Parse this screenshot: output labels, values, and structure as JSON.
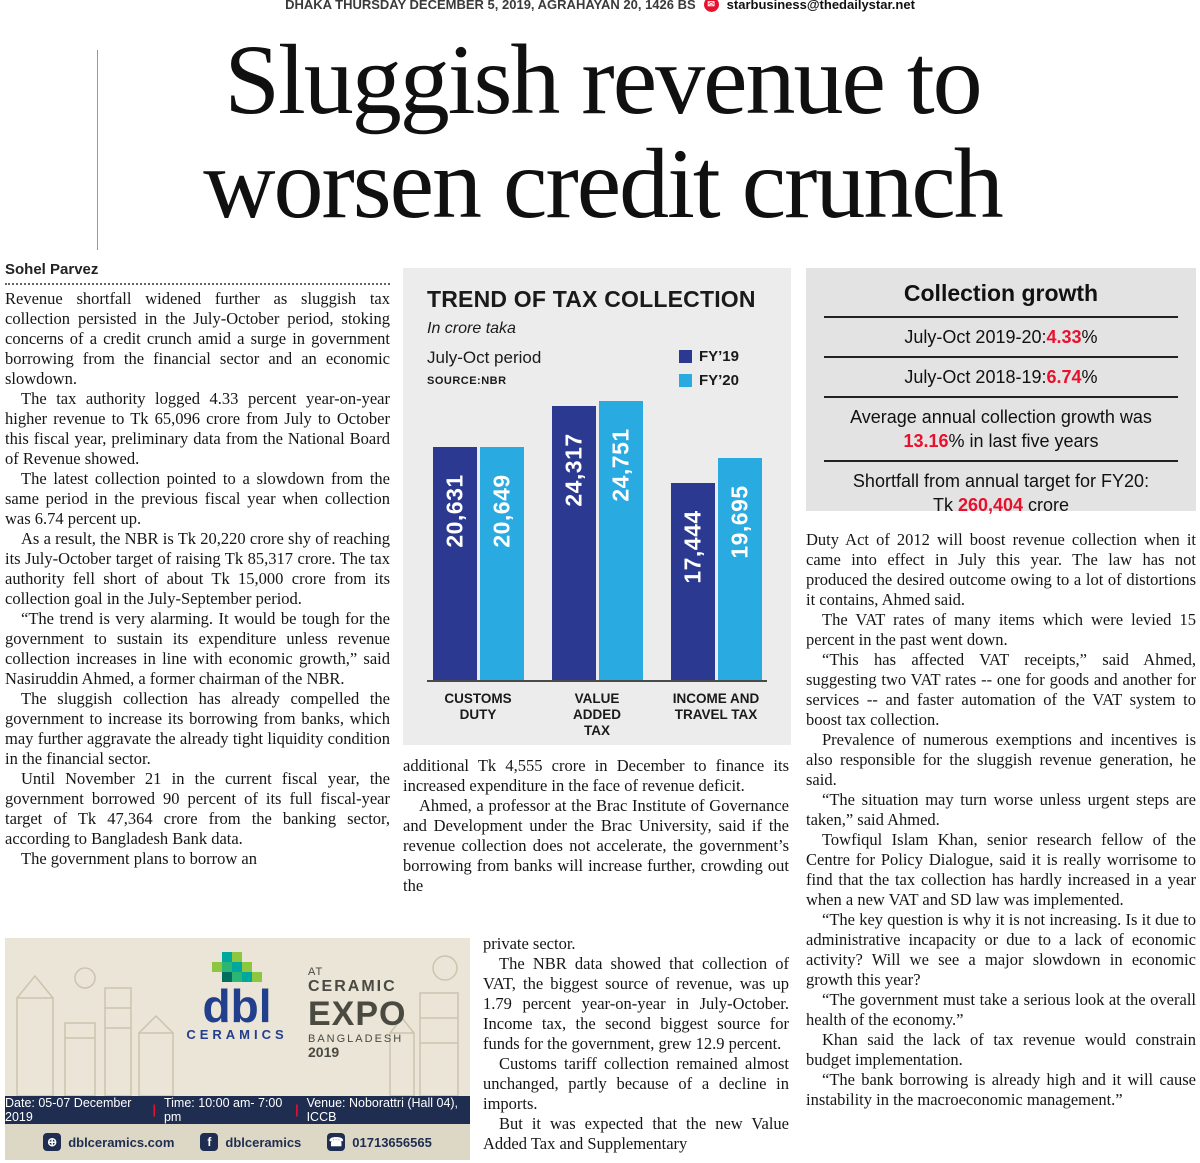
{
  "topbar": {
    "date_line": "DHAKA THURSDAY DECEMBER 5, 2019, AGRAHAYAN 20, 1426 BS",
    "email": "starbusiness@thedailystar.net"
  },
  "headline": {
    "line1": "Sluggish revenue to",
    "line2": "worsen credit crunch"
  },
  "byline": "Sohel Parvez",
  "article": {
    "col_left": [
      "Revenue shortfall widened further as sluggish tax collection persisted in the July-October period, stoking concerns of a credit crunch amid a surge in government borrowing from the financial sector and an economic slowdown.",
      "The tax authority logged 4.33 percent year-on-year higher revenue to Tk 65,096 crore from July to October this fiscal year, preliminary data from the National Board of Revenue showed.",
      "The latest collection pointed to a slowdown from the same period in the previous fiscal year when collection was 6.74 percent up.",
      "As a result, the NBR is Tk 20,220 crore shy of reaching its July-October target of raising Tk 85,317 crore. The tax authority fell short of about Tk 15,000 crore from its collection goal in the July-September period.",
      "“The trend is very alarming. It would be tough for the government to sustain its expenditure unless revenue collection increases in line with economic growth,” said Nasiruddin Ahmed, a former chairman of the NBR.",
      "The sluggish collection has already compelled the government to increase its borrowing from banks, which may further aggravate the already tight liquidity condition in the financial sector.",
      "Until November 21 in the current fiscal year, the government borrowed 90 percent of its full fiscal-year target of Tk 47,364 crore from the banking sector, according to Bangladesh Bank data.",
      "The government plans to borrow an"
    ],
    "col_middle_top": [
      "additional Tk 4,555 crore in December to finance its increased expenditure in the face of revenue deficit.",
      "Ahmed, a professor at the Brac Institute of Governance and Development under the Brac University, said if the revenue collection does not accelerate, the government’s borrowing from banks will increase further, crowding out the"
    ],
    "col_middle_bottom": [
      "private sector.",
      "The NBR data showed that collection of VAT, the biggest source of revenue, was up 1.79 percent year-on-year in July-October. Income tax, the second biggest source for funds for the government, grew 12.9 percent.",
      "Customs tariff collection remained almost unchanged, partly because of a decline in imports.",
      "But it was expected that the new Value Added Tax and Supplementary"
    ],
    "col_right": [
      "Duty Act of 2012 will boost revenue collection when it came into effect in July this year. The law has not produced the desired outcome owing to a lot of distortions it contains, Ahmed said.",
      "The VAT rates of many items which were levied 15 percent in the past went down.",
      "“This has affected VAT receipts,” said Ahmed, suggesting two VAT rates -- one for goods and another for services -- and faster automation of the VAT system to boost tax collection.",
      "Prevalence of numerous exemptions and incentives is also responsible for the sluggish revenue generation, he said.",
      "“The situation may turn worse unless urgent steps are taken,” said Ahmed.",
      "Towfiqul Islam Khan, senior research fellow of the Centre for Policy Dialogue, said it is really worrisome to find that the tax collection has hardly increased in a year when a new VAT and SD law was implemented.",
      "“The key question is why it is not increasing. Is it due to administrative incapacity or due to a lack of economic activity? Will we see a major slowdown in economic growth this year?",
      "“The government must take a serious look at the overall health of the economy.”",
      "Khan said the lack of tax revenue would constrain budget implementation.",
      "“The bank borrowing is already high and it will cause instability in the macroeconomic management.”"
    ]
  },
  "chart": {
    "title": "TREND OF TAX COLLECTION",
    "subtitle": "In crore taka",
    "period": "July-Oct period",
    "source": "SOURCE:NBR"
  },
  "chart_data": {
    "type": "bar",
    "title": "TREND OF TAX COLLECTION",
    "unit": "crore taka",
    "period": "July-Oct period",
    "source": "NBR",
    "categories": [
      "CUSTOMS\nDUTY",
      "VALUE ADDED\nTAX",
      "INCOME AND\nTRAVEL TAX"
    ],
    "series": [
      {
        "name": "FY’19",
        "color": "#2b3990",
        "values": [
          20631,
          24317,
          17444
        ]
      },
      {
        "name": "FY’20",
        "color": "#29abe2",
        "values": [
          20649,
          24751,
          19695
        ]
      }
    ],
    "ylim": [
      0,
      24751
    ],
    "legend_position": "top-right",
    "grid": false
  },
  "growth_box": {
    "title": "Collection growth",
    "accent_color": "#e8112d",
    "rows": [
      {
        "line1": {
          "pre": "July-Oct 2019-20:",
          "hl": "4.33",
          "post": "%"
        }
      },
      {
        "line1": {
          "pre": "July-Oct 2018-19:",
          "hl": "6.74",
          "post": "%"
        }
      },
      {
        "line1": {
          "pre": "Average annual collection growth was",
          "hl": "",
          "post": ""
        },
        "line2": {
          "pre": "",
          "hl": "13.16",
          "post": "% in last five years"
        }
      },
      {
        "line1": {
          "pre": "Shortfall from annual target for FY20:",
          "hl": "",
          "post": ""
        },
        "line2": {
          "pre": "Tk ",
          "hl": "260,404",
          "post": " crore"
        }
      }
    ]
  },
  "ad": {
    "logo_text": "dbl",
    "logo_sub": "CERAMICS",
    "brand_color": "#223f8e",
    "bar_color": "#1e2d50",
    "event_at": "AT",
    "event_ceramic": "CERAMIC",
    "event_expo": "EXPO",
    "event_bangladesh": "BANGLADESH",
    "event_year": "2019",
    "date": "Date: 05-07 December 2019",
    "time": "Time: 10:00 am- 7:00 pm",
    "venue": "Venue: Noborattri (Hall 04), ICCB",
    "web": "dblceramics.com",
    "facebook": "dblceramics",
    "phone": "01713656565"
  }
}
